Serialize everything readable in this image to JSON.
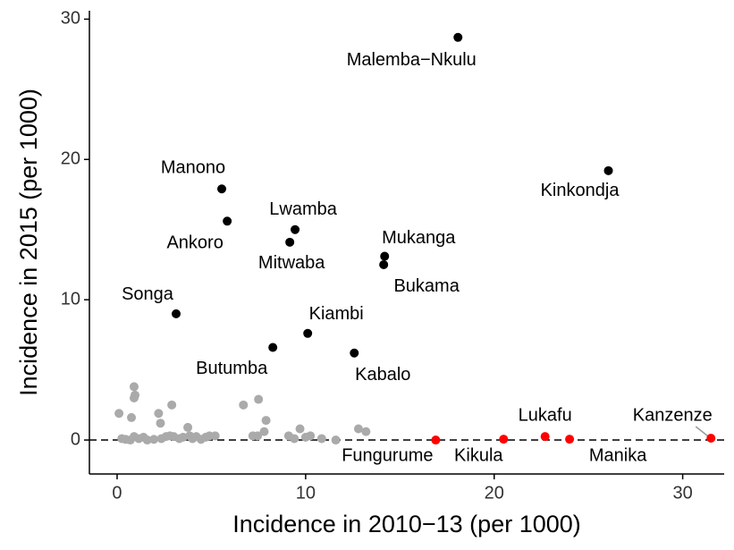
{
  "chart_data": {
    "type": "scatter",
    "xlabel": "Incidence in 2010−13 (per 1000)",
    "ylabel": "Incidence in 2015 (per 1000)",
    "xlim": [
      -1.47,
      32.2
    ],
    "ylim": [
      -2.42,
      30.6
    ],
    "xticks": [
      0,
      10,
      20,
      30
    ],
    "yticks": [
      0,
      10,
      20,
      30
    ],
    "hline": 0,
    "series": [
      {
        "color": "#aaaaaa",
        "x": [
          0.1,
          0.76,
          0.9,
          0.95,
          0.9,
          0.25,
          0.45,
          0.7,
          0.9,
          1.15,
          1.4,
          1.6,
          1.95,
          2.2,
          2.3,
          2.35,
          2.6,
          2.9,
          2.8,
          3.0,
          3.3,
          3.5,
          3.75,
          3.85,
          4.0,
          4.2,
          4.45,
          4.7,
          4.9,
          5.2,
          6.7,
          7.5,
          7.2,
          7.45,
          7.8,
          7.9,
          9.1,
          9.4,
          9.7,
          10.0,
          10.25,
          10.85,
          11.6,
          12.8,
          13.2
        ],
        "y": [
          1.9,
          1.6,
          3.8,
          3.2,
          3.0,
          0.1,
          0.05,
          0.0,
          0.25,
          0.1,
          0.2,
          0.0,
          0.05,
          1.9,
          1.2,
          0.1,
          0.25,
          2.5,
          0.3,
          0.25,
          0.1,
          0.2,
          0.9,
          0.3,
          0.1,
          0.25,
          0.05,
          0.2,
          0.3,
          0.3,
          2.5,
          2.9,
          0.3,
          0.3,
          0.6,
          1.4,
          0.3,
          0.1,
          0.8,
          0.2,
          0.3,
          0.1,
          0.0,
          0.8,
          0.6
        ]
      },
      {
        "color": "#000000",
        "labels": [
          "Malemba−Nkulu",
          "Kinkondja",
          "Manono",
          "Ankoro",
          "Lwamba",
          "Mitwaba",
          "Mukanga",
          "Bukama",
          "Songa",
          "Kiambi",
          "Butumba",
          "Kabalo"
        ],
        "x": [
          18.08,
          26.06,
          5.55,
          5.84,
          9.44,
          9.16,
          14.19,
          14.14,
          3.13,
          10.11,
          8.26,
          12.58
        ],
        "y": [
          28.7,
          19.2,
          17.9,
          15.6,
          15.0,
          14.1,
          13.1,
          12.5,
          9.0,
          7.6,
          6.6,
          6.2
        ]
      },
      {
        "color": "#ff0000",
        "labels": [
          "Fungurume",
          "Kikula",
          "Lukafu",
          "Manika",
          "Kanzenze"
        ],
        "x": [
          16.9,
          20.5,
          22.7,
          24.0,
          31.5
        ],
        "y": [
          0.0,
          0.06,
          0.25,
          0.06,
          0.13
        ]
      }
    ]
  }
}
